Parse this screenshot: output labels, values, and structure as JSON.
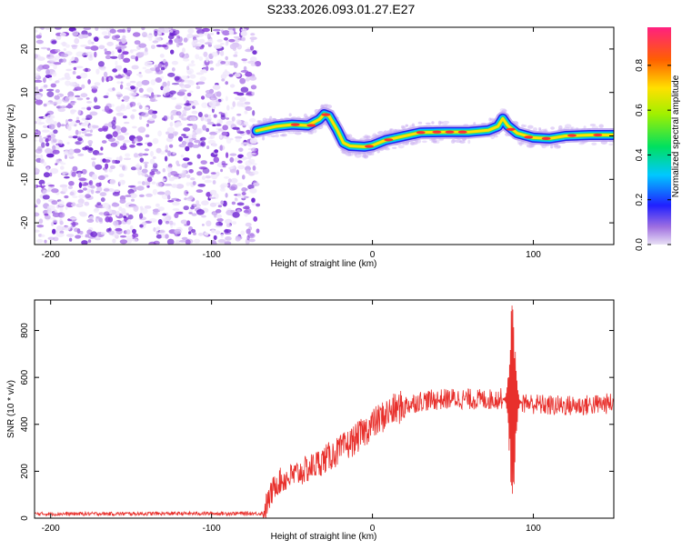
{
  "title": "S233.2026.093.01.27.E27",
  "chart_data": [
    {
      "type": "heatmap",
      "name": "spectrogram",
      "xlabel": "Height of straight line (km)",
      "ylabel": "Frequency (Hz)",
      "xlim": [
        -210,
        150
      ],
      "ylim": [
        -25,
        25
      ],
      "xticks": [
        -200,
        -100,
        0,
        100
      ],
      "yticks": [
        -20,
        -10,
        0,
        10,
        20
      ],
      "noise_region": [
        -210,
        -70
      ],
      "ridge": [
        [
          -72,
          1.2
        ],
        [
          -60,
          2.2
        ],
        [
          -50,
          2.6
        ],
        [
          -40,
          2.4
        ],
        [
          -33,
          3.8
        ],
        [
          -30,
          5.0
        ],
        [
          -27,
          4.6
        ],
        [
          -22,
          1.4
        ],
        [
          -18,
          -1.6
        ],
        [
          -14,
          -2.3
        ],
        [
          -5,
          -2.5
        ],
        [
          0,
          -2.2
        ],
        [
          8,
          -1.0
        ],
        [
          20,
          0.0
        ],
        [
          30,
          0.8
        ],
        [
          45,
          0.9
        ],
        [
          60,
          0.9
        ],
        [
          72,
          1.3
        ],
        [
          78,
          2.2
        ],
        [
          81,
          4.0
        ],
        [
          84,
          2.4
        ],
        [
          90,
          0.6
        ],
        [
          100,
          -0.4
        ],
        [
          110,
          -0.6
        ],
        [
          120,
          0.0
        ],
        [
          135,
          0.2
        ],
        [
          150,
          0.2
        ]
      ],
      "colorbar": {
        "label": "Normalized spectral amplitude",
        "ticks": [
          0.0,
          0.2,
          0.4,
          0.6,
          0.8
        ],
        "tick_labels": [
          "0.0",
          "0.2",
          "0.4",
          "0.6",
          "0.8"
        ],
        "range": [
          0,
          0.97
        ]
      }
    },
    {
      "type": "line",
      "name": "snr",
      "xlabel": "Height of straight line (km)",
      "ylabel": "SNR (10 * v/v)",
      "xlim": [
        -210,
        150
      ],
      "ylim": [
        0,
        930
      ],
      "xticks": [
        -200,
        -100,
        0,
        100
      ],
      "yticks": [
        0,
        200,
        400,
        600,
        800
      ],
      "color": "#e8302c",
      "trend": [
        [
          -210,
          18
        ],
        [
          -100,
          20
        ],
        [
          -68,
          20
        ],
        [
          -60,
          150
        ],
        [
          -50,
          180
        ],
        [
          -40,
          210
        ],
        [
          -30,
          250
        ],
        [
          -20,
          290
        ],
        [
          -10,
          340
        ],
        [
          0,
          400
        ],
        [
          10,
          450
        ],
        [
          20,
          480
        ],
        [
          30,
          500
        ],
        [
          50,
          510
        ],
        [
          70,
          505
        ],
        [
          80,
          510
        ],
        [
          90,
          495
        ],
        [
          110,
          480
        ],
        [
          130,
          480
        ],
        [
          150,
          490
        ]
      ],
      "spike": {
        "center": 87,
        "max": 930,
        "min": 65
      }
    }
  ],
  "axis_labels": {
    "x_tick_labels": [
      "-200",
      "-100",
      "0",
      "100"
    ],
    "spec_y_tick_labels": [
      "-20",
      "-10",
      "0",
      "10",
      "20"
    ],
    "snr_y_tick_labels": [
      "0",
      "200",
      "400",
      "600",
      "800"
    ]
  },
  "colors": {
    "axis": "#000000",
    "snr_line": "#e8302c",
    "noise": "#8a2be2"
  }
}
